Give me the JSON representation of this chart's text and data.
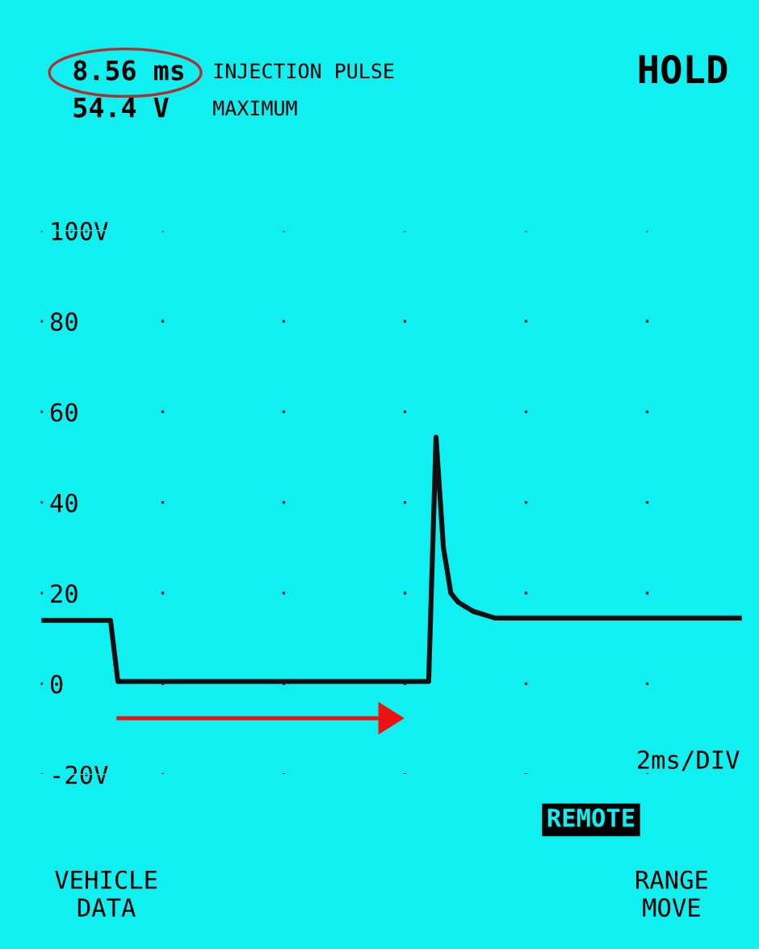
{
  "chart_data": {
    "type": "line",
    "title": "INJECTION PULSE",
    "subtitle": "MAXIMUM",
    "categories": [
      null,
      null,
      null,
      null,
      null,
      null,
      null,
      null,
      null,
      null,
      null,
      null,
      null,
      null,
      null,
      null,
      null,
      null,
      null,
      null,
      null,
      null,
      null,
      null,
      null,
      null,
      null,
      null,
      null,
      null,
      null,
      null,
      null,
      null,
      null,
      null,
      null,
      null,
      null,
      null,
      null,
      null,
      null,
      null,
      null,
      null,
      null,
      null,
      null,
      null,
      null,
      null,
      null,
      null,
      null,
      null,
      null,
      null,
      null,
      null,
      null,
      null,
      null,
      null,
      null,
      null,
      null,
      null,
      null,
      null,
      null,
      null,
      null,
      null,
      null,
      null,
      null,
      null,
      null,
      null,
      null,
      null,
      null,
      null,
      null,
      null,
      null,
      null,
      null,
      null,
      null,
      null,
      null,
      null,
      null
    ],
    "series": [
      {
        "color": "#101010",
        "values": [
          14,
          14,
          14,
          14,
          14,
          14,
          14,
          14,
          14,
          14,
          0.5,
          0.5,
          0.5,
          0.5,
          0.5,
          0.5,
          0.5,
          0.5,
          0.5,
          0.5,
          0.5,
          0.5,
          0.5,
          0.5,
          0.5,
          0.5,
          0.5,
          0.5,
          0.5,
          0.5,
          0.5,
          0.5,
          0.5,
          0.5,
          0.5,
          0.5,
          0.5,
          0.5,
          0.5,
          0.5,
          0.5,
          0.5,
          0.5,
          0.5,
          0.5,
          0.5,
          0.5,
          0.5,
          0.5,
          0.5,
          0.5,
          0.5,
          0.5,
          54.4,
          30,
          20,
          18,
          17,
          16,
          15.5,
          15,
          14.5,
          14.5,
          14.5,
          14.5,
          14.5,
          14.5,
          14.5,
          14.5,
          14.5,
          14.5,
          14.5,
          14.5,
          14.5,
          14.5,
          14.5,
          14.5,
          14.5,
          14.5,
          14.5,
          14.5,
          14.5,
          14.5,
          14.5,
          14.5,
          14.5,
          14.5,
          14.5,
          14.5,
          14.5,
          14.5,
          14.5,
          14.5,
          14.5,
          14.5
        ]
      }
    ],
    "ylim": [
      -20,
      100
    ],
    "yticks": [
      {
        "value": -20,
        "label": "-20V"
      },
      0,
      20,
      40,
      60,
      80,
      {
        "value": 100,
        "label": "100V"
      }
    ],
    "tick_labels": "y",
    "grid": "y",
    "marker": "none",
    "line_style": "solid",
    "annotations": [
      "8.56 ms",
      "54.4 V",
      "HOLD",
      "2ms/DIV",
      "REMOTE",
      "VEHICLE\nDATA",
      "RANGE\nMOVE"
    ]
  }
}
